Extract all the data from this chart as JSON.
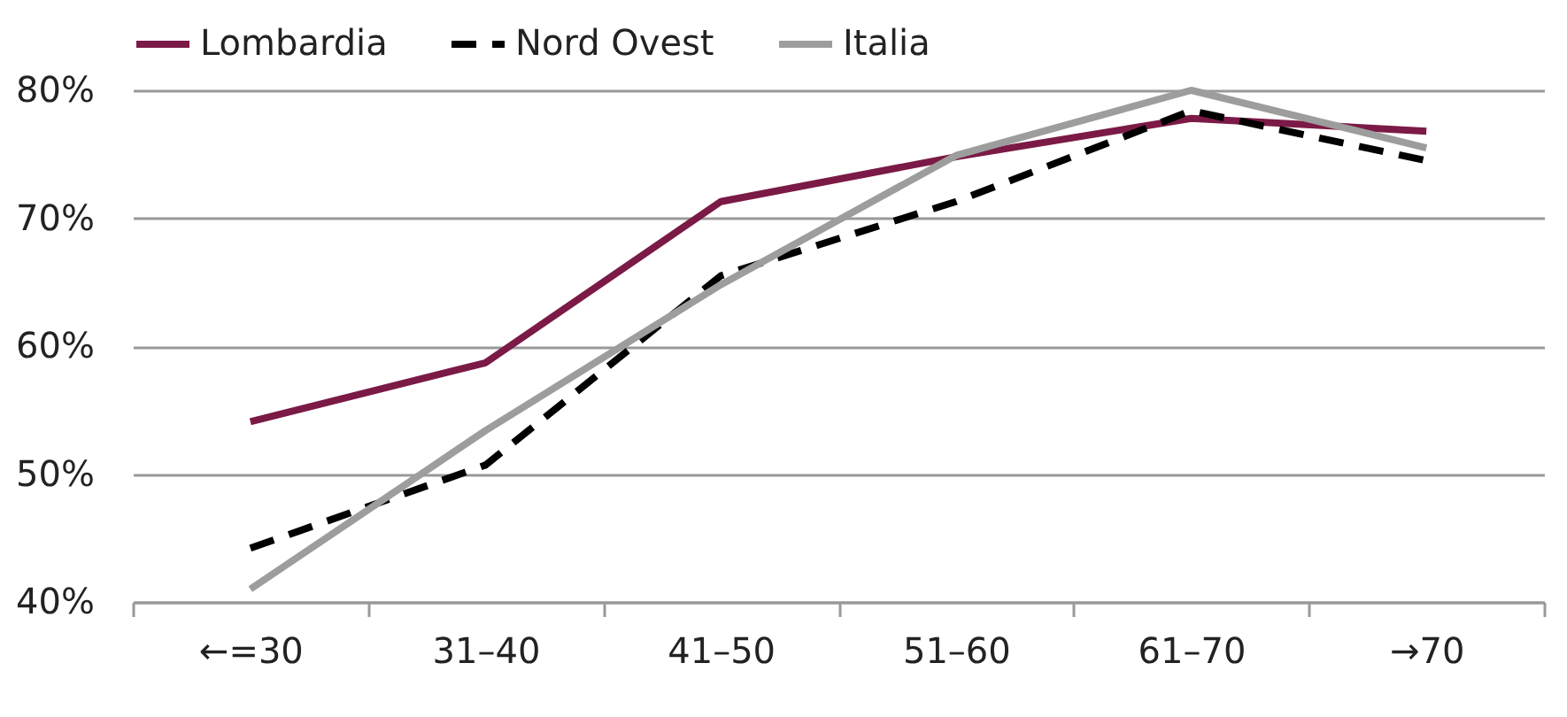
{
  "chart_data": {
    "type": "line",
    "categories": [
      "←=30",
      "31–40",
      "41–50",
      "51–60",
      "61–70",
      "→70"
    ],
    "series": [
      {
        "name": "Lombardia",
        "color": "#7b1a46",
        "line_style": "solid",
        "values": [
          54.1,
          58.7,
          71.3,
          74.8,
          77.8,
          76.8
        ]
      },
      {
        "name": "Nord Ovest",
        "color": "#000000",
        "line_style": "dashed",
        "values": [
          44.2,
          50.7,
          65.5,
          71.3,
          78.4,
          74.5
        ]
      },
      {
        "name": "Italia",
        "color": "#9d9d9d",
        "line_style": "solid",
        "values": [
          41.0,
          53.4,
          64.8,
          74.9,
          80.0,
          75.5
        ]
      }
    ],
    "ylim": [
      40,
      80
    ],
    "yticks": [
      {
        "value": 40,
        "label": "40%"
      },
      {
        "value": 50,
        "label": "50%"
      },
      {
        "value": 60,
        "label": "60%"
      },
      {
        "value": 70,
        "label": "70%"
      },
      {
        "value": 80,
        "label": "80%"
      }
    ],
    "grid": "y",
    "legend": "top",
    "marker": "none"
  }
}
